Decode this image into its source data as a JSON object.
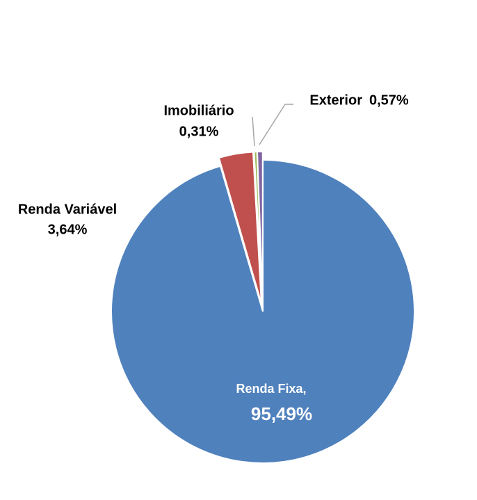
{
  "chart_data": {
    "type": "pie",
    "categories": [
      "Renda Fixa,",
      "Renda Variável",
      "Imobiliário",
      "Exterior"
    ],
    "values": [
      95.49,
      3.64,
      0.31,
      0.57
    ],
    "value_labels": [
      "95,49%",
      "3,64%",
      "0,31%",
      "0,57%"
    ],
    "colors": [
      "#4f81bd",
      "#c0504d",
      "#9bbb59",
      "#8064a2"
    ]
  }
}
